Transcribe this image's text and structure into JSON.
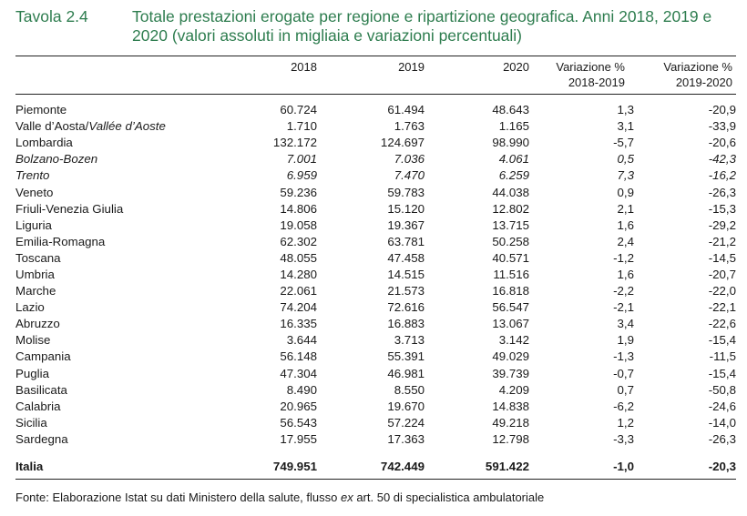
{
  "header": {
    "label": "Tavola 2.4",
    "title_main": "Totale prestazioni erogate per regione e ripartizione geografica. Anni 2018, 2019 e 2020",
    "title_sub": "(valori assoluti in migliaia e variazioni percentuali)"
  },
  "columns": {
    "c2018": "2018",
    "c2019": "2019",
    "c2020": "2020",
    "var1_line1": "Variazione %",
    "var1_line2": "2018-2019",
    "var2_line1": "Variazione %",
    "var2_line2": "2019-2020"
  },
  "rows": [
    {
      "name": "Piemonte",
      "v2018": "60.724",
      "v2019": "61.494",
      "v2020": "48.643",
      "var1": "1,3",
      "var2": "-20,9"
    },
    {
      "name_a": "Valle d’Aosta/",
      "name_b": "Vallée d’Aoste",
      "v2018": "1.710",
      "v2019": "1.763",
      "v2020": "1.165",
      "var1": "3,1",
      "var2": "-33,9"
    },
    {
      "name": "Lombardia",
      "v2018": "132.172",
      "v2019": "124.697",
      "v2020": "98.990",
      "var1": "-5,7",
      "var2": "-20,6"
    },
    {
      "name": "Bolzano-Bozen",
      "v2018": "7.001",
      "v2019": "7.036",
      "v2020": "4.061",
      "var1": "0,5",
      "var2": "-42,3",
      "italic": true
    },
    {
      "name": "Trento",
      "v2018": "6.959",
      "v2019": "7.470",
      "v2020": "6.259",
      "var1": "7,3",
      "var2": "-16,2",
      "italic": true
    },
    {
      "name": "Veneto",
      "v2018": "59.236",
      "v2019": "59.783",
      "v2020": "44.038",
      "var1": "0,9",
      "var2": "-26,3"
    },
    {
      "name": "Friuli-Venezia Giulia",
      "v2018": "14.806",
      "v2019": "15.120",
      "v2020": "12.802",
      "var1": "2,1",
      "var2": "-15,3"
    },
    {
      "name": "Liguria",
      "v2018": "19.058",
      "v2019": "19.367",
      "v2020": "13.715",
      "var1": "1,6",
      "var2": "-29,2"
    },
    {
      "name": "Emilia-Romagna",
      "v2018": "62.302",
      "v2019": "63.781",
      "v2020": "50.258",
      "var1": "2,4",
      "var2": "-21,2"
    },
    {
      "name": "Toscana",
      "v2018": "48.055",
      "v2019": "47.458",
      "v2020": "40.571",
      "var1": "-1,2",
      "var2": "-14,5"
    },
    {
      "name": "Umbria",
      "v2018": "14.280",
      "v2019": "14.515",
      "v2020": "11.516",
      "var1": "1,6",
      "var2": "-20,7"
    },
    {
      "name": "Marche",
      "v2018": "22.061",
      "v2019": "21.573",
      "v2020": "16.818",
      "var1": "-2,2",
      "var2": "-22,0"
    },
    {
      "name": "Lazio",
      "v2018": "74.204",
      "v2019": "72.616",
      "v2020": "56.547",
      "var1": "-2,1",
      "var2": "-22,1"
    },
    {
      "name": "Abruzzo",
      "v2018": "16.335",
      "v2019": "16.883",
      "v2020": "13.067",
      "var1": "3,4",
      "var2": "-22,6"
    },
    {
      "name": "Molise",
      "v2018": "3.644",
      "v2019": "3.713",
      "v2020": "3.142",
      "var1": "1,9",
      "var2": "-15,4"
    },
    {
      "name": "Campania",
      "v2018": "56.148",
      "v2019": "55.391",
      "v2020": "49.029",
      "var1": "-1,3",
      "var2": "-11,5"
    },
    {
      "name": "Puglia",
      "v2018": "47.304",
      "v2019": "46.981",
      "v2020": "39.739",
      "var1": "-0,7",
      "var2": "-15,4"
    },
    {
      "name": "Basilicata",
      "v2018": "8.490",
      "v2019": "8.550",
      "v2020": "4.209",
      "var1": "0,7",
      "var2": "-50,8"
    },
    {
      "name": "Calabria",
      "v2018": "20.965",
      "v2019": "19.670",
      "v2020": "14.838",
      "var1": "-6,2",
      "var2": "-24,6"
    },
    {
      "name": "Sicilia",
      "v2018": "56.543",
      "v2019": "57.224",
      "v2020": "49.218",
      "var1": "1,2",
      "var2": "-14,0"
    },
    {
      "name": "Sardegna",
      "v2018": "17.955",
      "v2019": "17.363",
      "v2020": "12.798",
      "var1": "-3,3",
      "var2": "-26,3"
    }
  ],
  "total": {
    "name": "Italia",
    "v2018": "749.951",
    "v2019": "742.449",
    "v2020": "591.422",
    "var1": "-1,0",
    "var2": "-20,3"
  },
  "source": {
    "prefix": "Fonte: Elaborazione Istat su dati Ministero della salute, flusso ",
    "italic": "ex",
    "suffix": " art. 50 di specialistica ambulatoriale"
  },
  "colors": {
    "title": "#2e7d4f",
    "text": "#1a1a1a"
  }
}
